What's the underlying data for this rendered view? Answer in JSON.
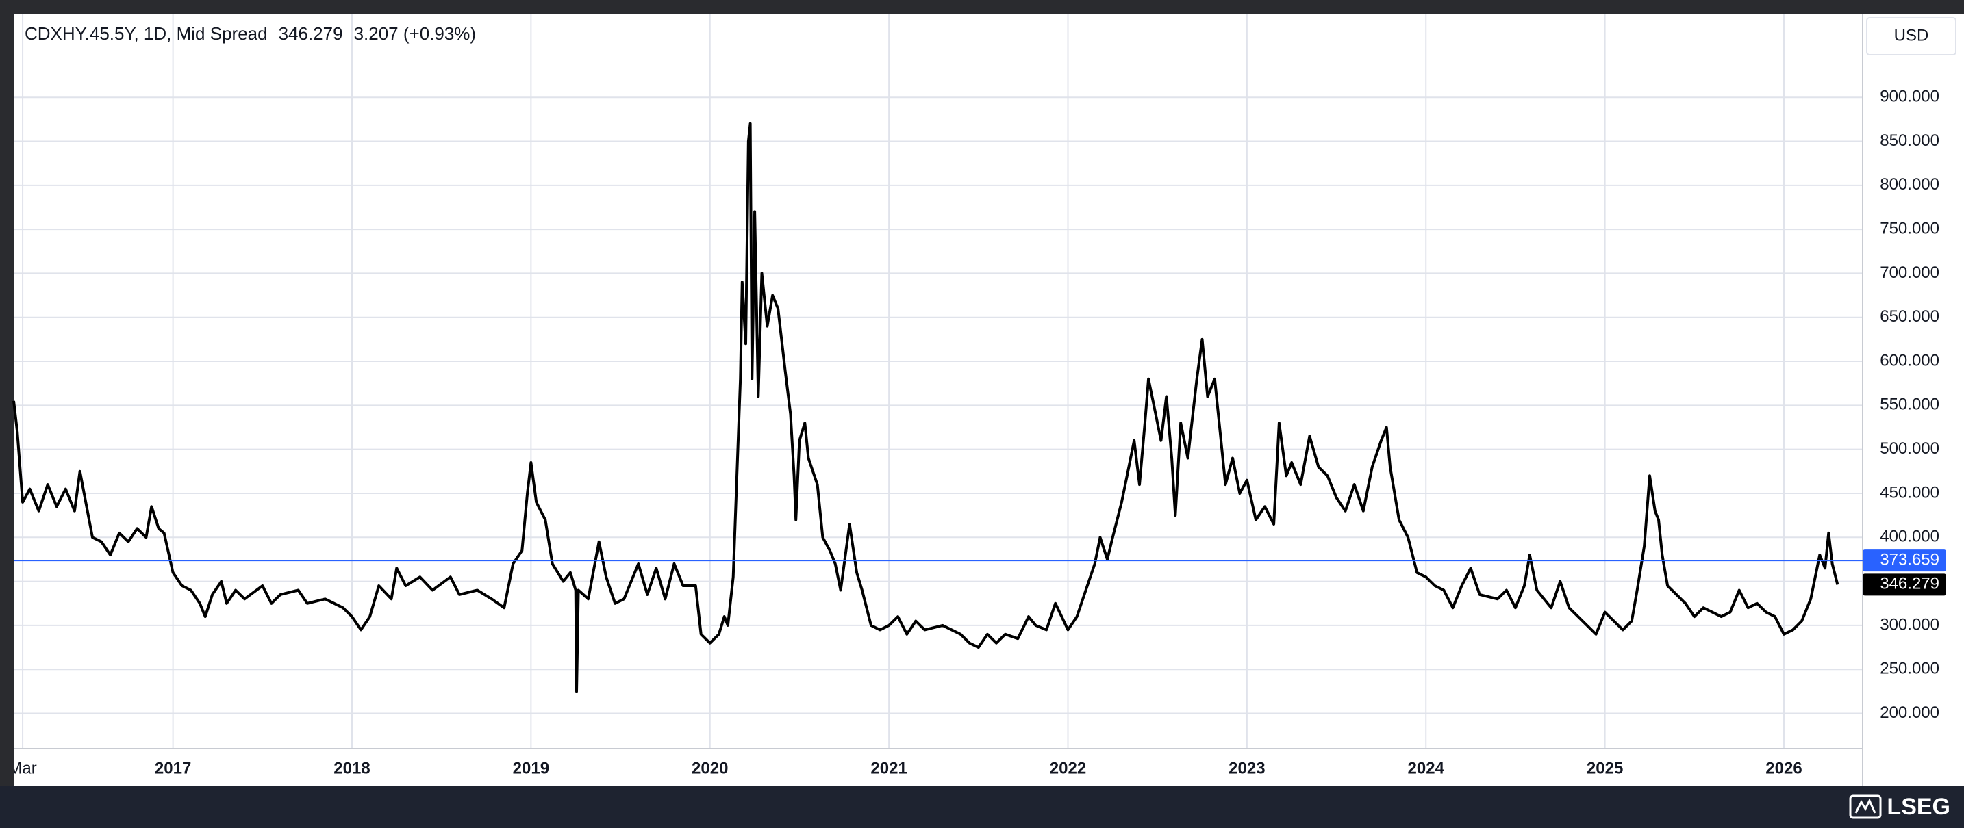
{
  "chart_data": {
    "type": "line",
    "title": "CDXHY.45.5Y, 1D, Mid Spread",
    "change": "3.207 (+0.93%)",
    "currency": "USD",
    "brand": "LSEG",
    "last_value": 346.279,
    "ref_line": {
      "value": 373.659,
      "color": "#2962ff"
    },
    "grid": true,
    "xlim": [
      2016.11,
      2026.44
    ],
    "xticks": [
      {
        "value": 2016.16,
        "label": "Mar"
      },
      2017,
      2018,
      2019,
      2020,
      2021,
      2022,
      2023,
      2024,
      2025,
      2026
    ],
    "ylim": [
      160,
      995
    ],
    "yticks": [
      {
        "value": 200,
        "label": "200.000"
      },
      {
        "value": 250,
        "label": "250.000"
      },
      {
        "value": 300,
        "label": "300.000"
      },
      {
        "value": 350,
        "label": "350.000"
      },
      {
        "value": 400,
        "label": "400.000"
      },
      {
        "value": 450,
        "label": "450.000"
      },
      {
        "value": 500,
        "label": "500.000"
      },
      {
        "value": 550,
        "label": "550.000"
      },
      {
        "value": 600,
        "label": "600.000"
      },
      {
        "value": 650,
        "label": "650.000"
      },
      {
        "value": 700,
        "label": "700.000"
      },
      {
        "value": 750,
        "label": "750.000"
      },
      {
        "value": 800,
        "label": "800.000"
      },
      {
        "value": 850,
        "label": "850.000"
      },
      {
        "value": 900,
        "label": "900.000"
      }
    ],
    "x": [
      2016.11,
      2016.13,
      2016.16,
      2016.2,
      2016.25,
      2016.3,
      2016.35,
      2016.4,
      2016.45,
      2016.48,
      2016.55,
      2016.6,
      2016.65,
      2016.7,
      2016.75,
      2016.8,
      2016.85,
      2016.88,
      2016.92,
      2016.95,
      2017.0,
      2017.05,
      2017.1,
      2017.15,
      2017.18,
      2017.22,
      2017.27,
      2017.3,
      2017.35,
      2017.4,
      2017.5,
      2017.55,
      2017.6,
      2017.7,
      2017.75,
      2017.85,
      2017.95,
      2018.0,
      2018.05,
      2018.1,
      2018.15,
      2018.22,
      2018.25,
      2018.3,
      2018.38,
      2018.45,
      2018.55,
      2018.6,
      2018.7,
      2018.78,
      2018.85,
      2018.9,
      2018.95,
      2018.98,
      2019.0,
      2019.03,
      2019.08,
      2019.12,
      2019.18,
      2019.22,
      2019.25,
      2019.255,
      2019.265,
      2019.32,
      2019.38,
      2019.42,
      2019.47,
      2019.52,
      2019.6,
      2019.65,
      2019.7,
      2019.75,
      2019.8,
      2019.85,
      2019.92,
      2019.95,
      2020.0,
      2020.05,
      2020.08,
      2020.1,
      2020.13,
      2020.17,
      2020.18,
      2020.2,
      2020.215,
      2020.225,
      2020.235,
      2020.25,
      2020.27,
      2020.29,
      2020.32,
      2020.35,
      2020.38,
      2020.42,
      2020.45,
      2020.47,
      2020.48,
      2020.5,
      2020.53,
      2020.55,
      2020.6,
      2020.63,
      2020.67,
      2020.7,
      2020.73,
      2020.78,
      2020.82,
      2020.85,
      2020.9,
      2020.95,
      2021.0,
      2021.05,
      2021.1,
      2021.15,
      2021.2,
      2021.3,
      2021.4,
      2021.45,
      2021.5,
      2021.55,
      2021.6,
      2021.65,
      2021.72,
      2021.78,
      2021.82,
      2021.88,
      2021.93,
      2022.0,
      2022.05,
      2022.1,
      2022.15,
      2022.18,
      2022.22,
      2022.25,
      2022.3,
      2022.33,
      2022.37,
      2022.4,
      2022.43,
      2022.45,
      2022.48,
      2022.52,
      2022.55,
      2022.58,
      2022.6,
      2022.63,
      2022.67,
      2022.72,
      2022.75,
      2022.78,
      2022.82,
      2022.85,
      2022.88,
      2022.92,
      2022.96,
      2023.0,
      2023.05,
      2023.1,
      2023.15,
      2023.18,
      2023.22,
      2023.25,
      2023.3,
      2023.35,
      2023.4,
      2023.45,
      2023.5,
      2023.55,
      2023.6,
      2023.65,
      2023.7,
      2023.75,
      2023.78,
      2023.8,
      2023.85,
      2023.9,
      2023.95,
      2024.0,
      2024.05,
      2024.1,
      2024.15,
      2024.2,
      2024.25,
      2024.3,
      2024.4,
      2024.45,
      2024.5,
      2024.55,
      2024.58,
      2024.62,
      2024.7,
      2024.75,
      2024.8,
      2024.85,
      2024.9,
      2024.95,
      2025.0,
      2025.05,
      2025.1,
      2025.15,
      2025.18,
      2025.22,
      2025.25,
      2025.28,
      2025.3,
      2025.32,
      2025.35,
      2025.4,
      2025.45,
      2025.5,
      2025.55,
      2025.6,
      2025.65,
      2025.7,
      2025.75,
      2025.8,
      2025.85,
      2025.9,
      2025.95,
      2026.0,
      2026.05,
      2026.1,
      2026.15,
      2026.2,
      2026.23,
      2026.25,
      2026.27,
      2026.3
    ],
    "series": [
      {
        "color": "#000000",
        "values": [
          555,
          520,
          440,
          455,
          430,
          460,
          435,
          455,
          430,
          475,
          400,
          395,
          380,
          405,
          395,
          410,
          400,
          435,
          410,
          405,
          360,
          345,
          340,
          325,
          310,
          335,
          350,
          325,
          340,
          330,
          345,
          325,
          335,
          340,
          325,
          330,
          320,
          310,
          295,
          310,
          345,
          330,
          365,
          345,
          355,
          340,
          355,
          335,
          340,
          330,
          320,
          370,
          385,
          450,
          485,
          440,
          420,
          370,
          350,
          360,
          340,
          225,
          340,
          330,
          395,
          355,
          325,
          330,
          370,
          335,
          365,
          330,
          370,
          345,
          345,
          290,
          280,
          290,
          310,
          300,
          355,
          580,
          690,
          620,
          850,
          870,
          580,
          770,
          560,
          700,
          640,
          675,
          660,
          590,
          540,
          470,
          420,
          510,
          530,
          490,
          460,
          400,
          385,
          370,
          340,
          415,
          360,
          340,
          300,
          295,
          300,
          310,
          290,
          305,
          295,
          300,
          290,
          280,
          275,
          290,
          280,
          290,
          285,
          310,
          300,
          295,
          325,
          295,
          310,
          340,
          370,
          400,
          375,
          400,
          440,
          470,
          510,
          460,
          530,
          580,
          550,
          510,
          560,
          490,
          425,
          530,
          490,
          580,
          625,
          560,
          580,
          520,
          460,
          490,
          450,
          465,
          420,
          435,
          415,
          530,
          470,
          485,
          460,
          515,
          480,
          470,
          445,
          430,
          460,
          430,
          480,
          510,
          525,
          480,
          420,
          400,
          360,
          355,
          345,
          340,
          320,
          345,
          365,
          335,
          330,
          340,
          320,
          345,
          380,
          340,
          320,
          350,
          320,
          310,
          300,
          290,
          315,
          305,
          295,
          305,
          340,
          390,
          470,
          430,
          420,
          380,
          345,
          335,
          325,
          310,
          320,
          315,
          310,
          315,
          340,
          320,
          325,
          315,
          310,
          290,
          295,
          305,
          330,
          380,
          365,
          405,
          370,
          346.279
        ]
      }
    ]
  }
}
